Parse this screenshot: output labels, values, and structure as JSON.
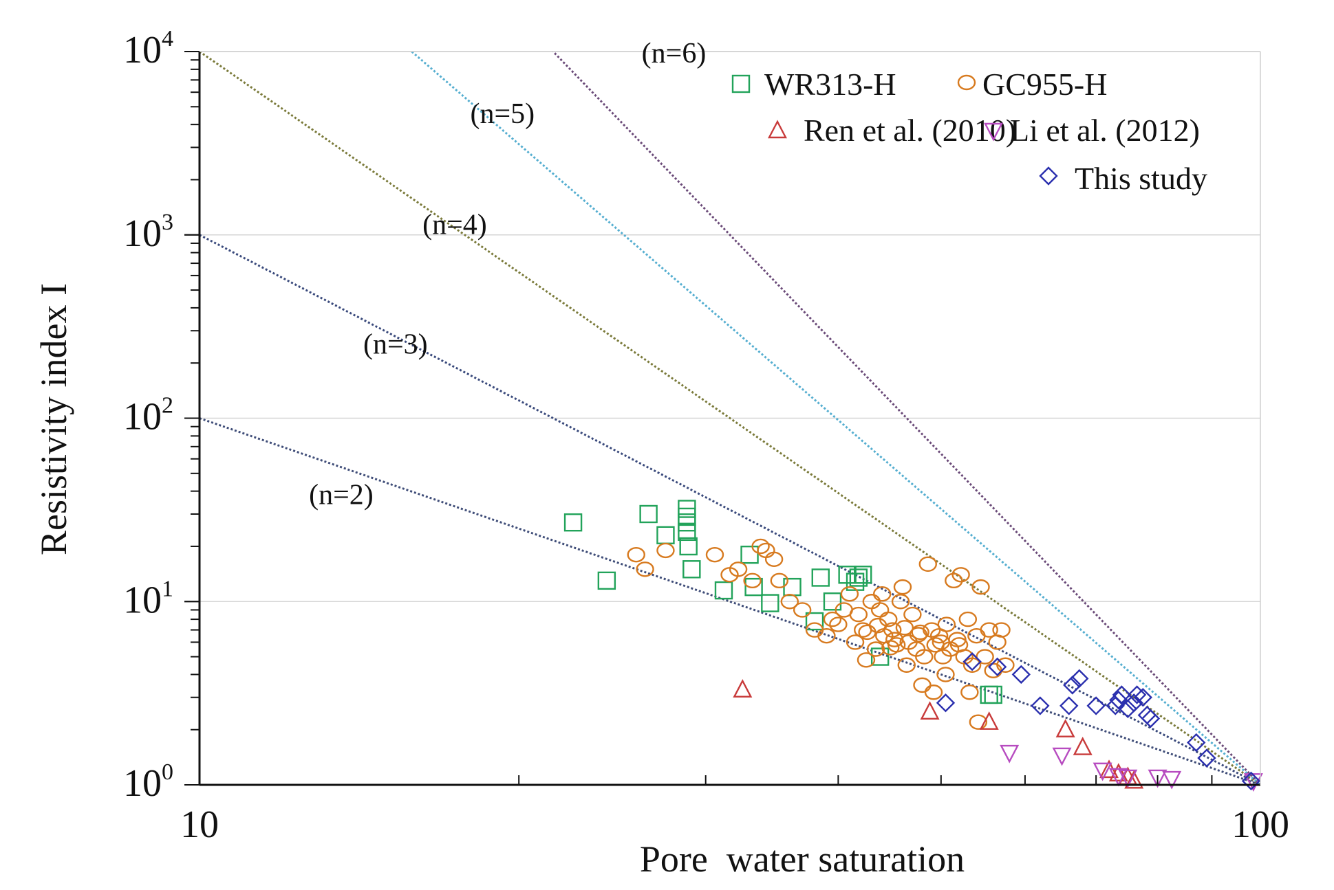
{
  "chart_data": {
    "type": "scatter",
    "xlabel": "Pore  water saturation",
    "ylabel": "Resistivity index I",
    "x_scale": "log",
    "y_scale": "log",
    "xlim": [
      10,
      100
    ],
    "ylim": [
      1,
      10000
    ],
    "x_major_ticks": [
      {
        "value": 10,
        "label": "10"
      },
      {
        "value": 100,
        "label": "100"
      }
    ],
    "y_major_ticks": [
      {
        "value": 1,
        "base": "10",
        "exp": "0"
      },
      {
        "value": 10,
        "base": "10",
        "exp": "1"
      },
      {
        "value": 100,
        "base": "10",
        "exp": "2"
      },
      {
        "value": 1000,
        "base": "10",
        "exp": "3"
      },
      {
        "value": 10000,
        "base": "10",
        "exp": "4"
      }
    ],
    "grid": "horizontal at major y ticks",
    "legend_placement": "top-right",
    "reference_lines": [
      {
        "label": "(n=2)",
        "n": 2,
        "color": "#3f4d78",
        "label_at": [
          13.6,
          34
        ]
      },
      {
        "label": "(n=3)",
        "n": 3,
        "color": "#3a4a7c",
        "label_at": [
          15.3,
          225
        ]
      },
      {
        "label": "(n=4)",
        "n": 4,
        "color": "#7a7a3a",
        "label_at": [
          17.4,
          1010
        ]
      },
      {
        "label": "(n=5)",
        "n": 5,
        "color": "#55aed0",
        "label_at": [
          19.3,
          4080
        ]
      },
      {
        "label": "(n=6)",
        "n": 6,
        "color": "#6a4a78",
        "label_at": [
          28.0,
          8700
        ]
      }
    ],
    "series": [
      {
        "name": "WR313-H",
        "marker": "square",
        "color": "#22a35a",
        "points": [
          [
            22.5,
            27
          ],
          [
            24.2,
            13
          ],
          [
            26.5,
            30
          ],
          [
            27.5,
            23
          ],
          [
            28.8,
            32
          ],
          [
            28.8,
            29
          ],
          [
            28.8,
            27
          ],
          [
            28.8,
            24
          ],
          [
            28.9,
            20
          ],
          [
            29.1,
            15
          ],
          [
            31.2,
            11.5
          ],
          [
            33.0,
            18
          ],
          [
            33.3,
            12
          ],
          [
            34.5,
            9.8
          ],
          [
            36.2,
            12
          ],
          [
            38.0,
            7.8
          ],
          [
            38.5,
            13.5
          ],
          [
            39.5,
            10
          ],
          [
            40.8,
            14
          ],
          [
            41.5,
            12.8
          ],
          [
            41.8,
            13.5
          ],
          [
            42.2,
            14
          ],
          [
            43.8,
            5
          ],
          [
            55.5,
            3.1
          ],
          [
            56.0,
            3.1
          ]
        ]
      },
      {
        "name": "GC955-H",
        "marker": "circle",
        "color": "#d77a1f",
        "points": [
          [
            25.8,
            18
          ],
          [
            26.3,
            15
          ],
          [
            27.5,
            19
          ],
          [
            30.6,
            18
          ],
          [
            31.6,
            14
          ],
          [
            32.2,
            15
          ],
          [
            33.2,
            13
          ],
          [
            33.8,
            20
          ],
          [
            34.2,
            19
          ],
          [
            34.8,
            17
          ],
          [
            35.2,
            13
          ],
          [
            36.0,
            10
          ],
          [
            37.0,
            9
          ],
          [
            38.0,
            7
          ],
          [
            39.0,
            6.5
          ],
          [
            39.5,
            8
          ],
          [
            40.0,
            7.5
          ],
          [
            40.5,
            9
          ],
          [
            41.0,
            11
          ],
          [
            41.5,
            6
          ],
          [
            41.8,
            8.5
          ],
          [
            42.2,
            7
          ],
          [
            42.6,
            6.8
          ],
          [
            43.0,
            10
          ],
          [
            43.4,
            5.5
          ],
          [
            43.8,
            9
          ],
          [
            44.2,
            6.5
          ],
          [
            44.6,
            8
          ],
          [
            45.0,
            7
          ],
          [
            45.4,
            5.8
          ],
          [
            45.8,
            10
          ],
          [
            46.2,
            7.2
          ],
          [
            46.6,
            6
          ],
          [
            47.0,
            8.5
          ],
          [
            47.4,
            5.5
          ],
          [
            47.8,
            6.8
          ],
          [
            48.2,
            5
          ],
          [
            48.6,
            16
          ],
          [
            49.0,
            7
          ],
          [
            49.4,
            5.8
          ],
          [
            49.8,
            6.5
          ],
          [
            50.2,
            5
          ],
          [
            50.6,
            7.5
          ],
          [
            51.0,
            5.5
          ],
          [
            51.4,
            13
          ],
          [
            51.8,
            6.2
          ],
          [
            52.2,
            14
          ],
          [
            52.6,
            5
          ],
          [
            53.0,
            8
          ],
          [
            53.5,
            4.5
          ],
          [
            54.0,
            6.5
          ],
          [
            54.5,
            12
          ],
          [
            55.0,
            5
          ],
          [
            55.5,
            7
          ],
          [
            56.0,
            4.2
          ],
          [
            56.5,
            6
          ],
          [
            57.0,
            7
          ],
          [
            57.5,
            4.5
          ],
          [
            42.5,
            4.8
          ],
          [
            44.0,
            11
          ],
          [
            46.0,
            12
          ],
          [
            48.0,
            3.5
          ],
          [
            49.2,
            3.2
          ],
          [
            50.5,
            4
          ],
          [
            53.2,
            3.2
          ],
          [
            54.2,
            2.2
          ],
          [
            46.4,
            4.5
          ],
          [
            45.2,
            6.2
          ],
          [
            47.6,
            6.6
          ],
          [
            44.8,
            5.6
          ],
          [
            43.6,
            7.4
          ],
          [
            50.0,
            6.0
          ],
          [
            52.0,
            5.8
          ]
        ]
      },
      {
        "name": "Ren et al. (2010)",
        "marker": "triangle-up",
        "color": "#c83a3a",
        "points": [
          [
            32.5,
            3.3
          ],
          [
            48.8,
            2.5
          ],
          [
            55.5,
            2.2
          ],
          [
            65.5,
            2.0
          ],
          [
            68.0,
            1.6
          ],
          [
            72.0,
            1.2
          ],
          [
            73.5,
            1.15
          ],
          [
            75.0,
            1.1
          ],
          [
            76.0,
            1.05
          ]
        ]
      },
      {
        "name": "Li et al. (2012)",
        "marker": "triangle-down",
        "color": "#b74bc0",
        "points": [
          [
            58.0,
            1.5
          ],
          [
            65.0,
            1.45
          ],
          [
            71.0,
            1.2
          ],
          [
            73.5,
            1.12
          ],
          [
            75.0,
            1.1
          ],
          [
            80.0,
            1.1
          ],
          [
            82.5,
            1.08
          ],
          [
            98.5,
            1.05
          ]
        ]
      },
      {
        "name": "This study",
        "marker": "diamond",
        "color": "#2a2fae",
        "points": [
          [
            50.5,
            2.8
          ],
          [
            53.5,
            4.7
          ],
          [
            56.5,
            4.4
          ],
          [
            59.5,
            4.0
          ],
          [
            62.0,
            2.7
          ],
          [
            66.0,
            2.7
          ],
          [
            66.5,
            3.5
          ],
          [
            67.5,
            3.8
          ],
          [
            70.0,
            2.7
          ],
          [
            73.0,
            2.7
          ],
          [
            73.5,
            2.9
          ],
          [
            74.0,
            3.1
          ],
          [
            75.0,
            2.6
          ],
          [
            76.0,
            2.8
          ],
          [
            76.5,
            3.1
          ],
          [
            77.5,
            3.0
          ],
          [
            78.2,
            2.4
          ],
          [
            78.8,
            2.3
          ],
          [
            87.0,
            1.7
          ],
          [
            89.0,
            1.4
          ],
          [
            98.0,
            1.05
          ]
        ]
      }
    ]
  }
}
